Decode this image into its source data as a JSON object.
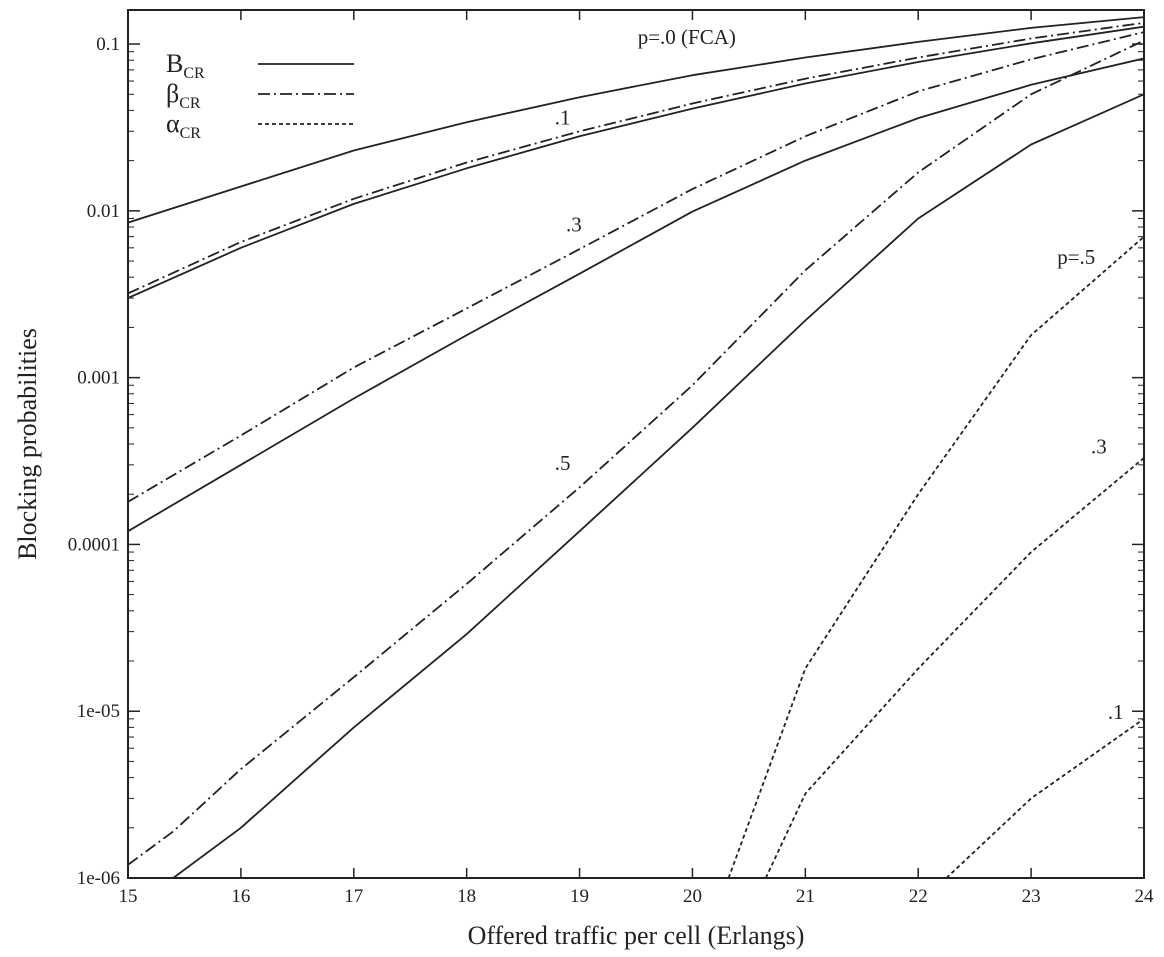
{
  "chart_data": {
    "type": "line",
    "xlabel": "Offered traffic per cell (Erlangs)",
    "ylabel": "Blocking probabilities",
    "xlim": [
      15,
      24
    ],
    "ylim": [
      1e-06,
      0.2
    ],
    "y_scale": "log",
    "x_ticks": [
      15,
      16,
      17,
      18,
      19,
      20,
      21,
      22,
      23,
      24
    ],
    "y_ticks": [
      {
        "value": 1e-06,
        "label": "1e-06"
      },
      {
        "value": 1e-05,
        "label": "1e-05"
      },
      {
        "value": 0.0001,
        "label": "0.0001"
      },
      {
        "value": 0.001,
        "label": "0.001"
      },
      {
        "value": 0.01,
        "label": "0.01"
      },
      {
        "value": 0.1,
        "label": "0.1"
      }
    ],
    "grid": false,
    "legend_position": "top-left",
    "legend": [
      {
        "label": "B",
        "sub": "CR",
        "style": "solid"
      },
      {
        "label": "β",
        "sub": "CR",
        "style": "dashdot"
      },
      {
        "label": "α",
        "sub": "CR",
        "style": "dashed"
      }
    ],
    "annotations": [
      {
        "text": "p=.0 (FCA)",
        "x": 19.95,
        "y": 0.1
      },
      {
        "text": ".1",
        "x": 18.85,
        "y": 0.033
      },
      {
        "text": ".3",
        "x": 18.95,
        "y": 0.0075
      },
      {
        "text": ".5",
        "x": 18.85,
        "y": 0.00028
      },
      {
        "text": "p=.5",
        "x": 23.4,
        "y": 0.0048
      },
      {
        "text": ".3",
        "x": 23.6,
        "y": 0.00035
      },
      {
        "text": ".1",
        "x": 23.75,
        "y": 9e-06
      }
    ],
    "series": [
      {
        "style": "solid",
        "x": [
          15,
          16,
          17,
          18,
          19,
          20,
          21,
          22,
          23,
          24
        ],
        "y": [
          0.0085,
          0.014,
          0.023,
          0.034,
          0.048,
          0.065,
          0.083,
          0.103,
          0.125,
          0.145
        ]
      },
      {
        "style": "dashdot",
        "x": [
          15,
          16,
          17,
          18,
          19,
          20,
          21,
          22,
          23,
          24
        ],
        "y": [
          0.0032,
          0.0065,
          0.0118,
          0.0195,
          0.03,
          0.044,
          0.062,
          0.083,
          0.108,
          0.134
        ]
      },
      {
        "style": "solid",
        "x": [
          15,
          16,
          17,
          18,
          19,
          20,
          21,
          22,
          23,
          24
        ],
        "y": [
          0.003,
          0.006,
          0.011,
          0.018,
          0.028,
          0.041,
          0.058,
          0.078,
          0.101,
          0.127
        ]
      },
      {
        "style": "dashdot",
        "x": [
          15,
          16,
          17,
          18,
          19,
          20,
          21,
          22,
          23,
          24
        ],
        "y": [
          0.00018,
          0.00045,
          0.00115,
          0.0026,
          0.0059,
          0.0135,
          0.028,
          0.052,
          0.081,
          0.118
        ]
      },
      {
        "style": "solid",
        "x": [
          15,
          16,
          17,
          18,
          19,
          20,
          21,
          22,
          23,
          24
        ],
        "y": [
          0.00012,
          0.0003,
          0.00075,
          0.0018,
          0.0042,
          0.0099,
          0.02,
          0.036,
          0.057,
          0.082
        ]
      },
      {
        "style": "dashdot",
        "x": [
          15,
          15.4,
          16,
          17,
          18,
          19,
          20,
          21,
          22,
          23,
          24
        ],
        "y": [
          1.2e-06,
          1.9e-06,
          4.5e-06,
          1.6e-05,
          5.8e-05,
          0.00022,
          0.0009,
          0.0044,
          0.017,
          0.05,
          0.105
        ]
      },
      {
        "style": "solid",
        "x": [
          15.4,
          16,
          17,
          18,
          19,
          20,
          21,
          22,
          23,
          24
        ],
        "y": [
          1e-06,
          2e-06,
          8e-06,
          2.9e-05,
          0.00012,
          0.0005,
          0.0022,
          0.009,
          0.025,
          0.05
        ]
      },
      {
        "style": "dashed",
        "x": [
          20.32,
          21,
          22,
          23,
          24
        ],
        "y": [
          1e-06,
          1.8e-05,
          0.0002,
          0.0018,
          0.007
        ]
      },
      {
        "style": "dashed",
        "x": [
          20.65,
          21,
          22,
          23,
          24
        ],
        "y": [
          1e-06,
          3.2e-06,
          1.8e-05,
          9e-05,
          0.00033
        ]
      },
      {
        "style": "dashed",
        "x": [
          22.25,
          23,
          24
        ],
        "y": [
          1e-06,
          3e-06,
          9e-06
        ]
      }
    ]
  }
}
